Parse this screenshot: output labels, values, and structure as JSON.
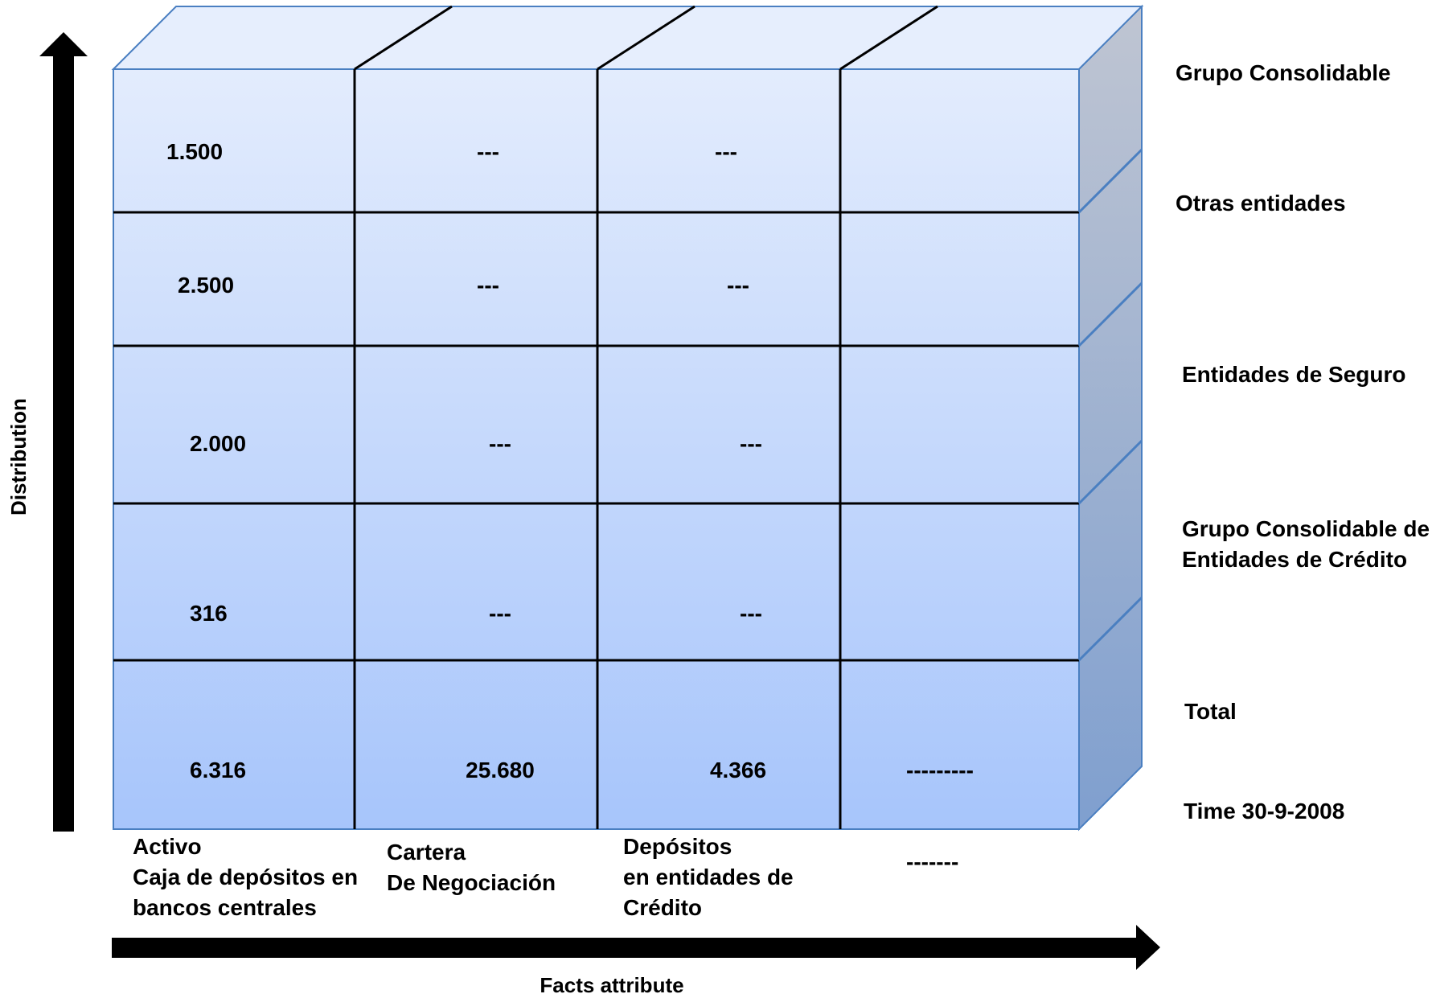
{
  "cube": {
    "rows": [
      {
        "label": "Grupo Consolidable",
        "cells": [
          "1.500",
          "---",
          "---",
          ""
        ]
      },
      {
        "label": "Otras entidades",
        "cells": [
          "2.500",
          "---",
          "---",
          ""
        ]
      },
      {
        "label": "Entidades de Seguro",
        "cells": [
          "2.000",
          "---",
          "---",
          ""
        ]
      },
      {
        "label": "Grupo Consolidable de Entidades de Crédito",
        "label_lines": [
          "Grupo Consolidable de",
          "Entidades de Crédito"
        ],
        "cells": [
          "316",
          "---",
          "---",
          ""
        ]
      },
      {
        "label": "Total",
        "cells": [
          "6.316",
          "25.680",
          "4.366",
          "---------"
        ]
      }
    ],
    "time_label": "Time 30-9-2008",
    "columns": [
      {
        "lines": [
          "Activo",
          "Caja de depósitos en",
          "bancos centrales"
        ]
      },
      {
        "lines": [
          "Cartera",
          "De Negociación"
        ]
      },
      {
        "lines": [
          "Depósitos",
          "en entidades  de",
          "Crédito"
        ]
      },
      {
        "lines": [
          "-------"
        ]
      }
    ]
  },
  "axes": {
    "y_label": "Distribution",
    "x_label": "Facts attribute"
  },
  "colors": {
    "front_top": "#e3ecfd",
    "front_bottom": "#a7c5fb",
    "top_face": "#e6eefd",
    "side_top": "#bfc5d2",
    "side_bottom": "#7f9fcf",
    "edge_blue": "#4a7fc1",
    "grid_line": "#000000"
  }
}
